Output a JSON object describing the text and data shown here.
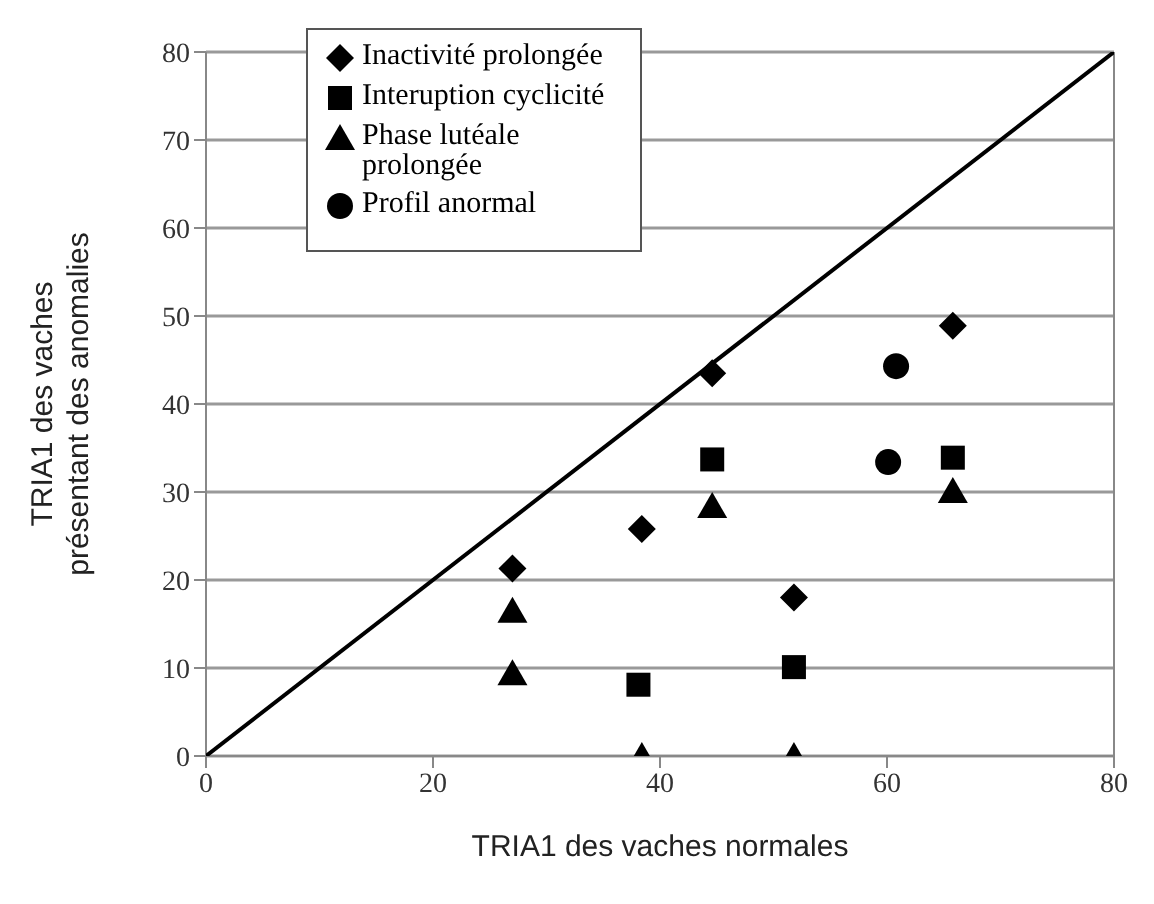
{
  "chart_data": {
    "type": "scatter",
    "xlabel": "TRIA1 des vaches normales",
    "ylabel": "TRIA1 des vaches présentant des anomalies",
    "xlim": [
      0,
      80
    ],
    "ylim": [
      0,
      80
    ],
    "xticks": [
      0,
      20,
      40,
      60,
      80
    ],
    "yticks": [
      0,
      10,
      20,
      30,
      40,
      50,
      60,
      70,
      80
    ],
    "grid": "y",
    "legend": "top left",
    "series": [
      {
        "name": "Inactivité prolongée",
        "color": "#000000",
        "marker": "diamond",
        "x": [
          27,
          38.4,
          44.6,
          51.8,
          65.8
        ],
        "values": [
          21.3,
          25.8,
          43.5,
          18,
          48.9
        ]
      },
      {
        "name": "Interuption cyclicité",
        "color": "#000000",
        "marker": "square",
        "x": [
          38.1,
          44.6,
          51.8,
          65.8
        ],
        "values": [
          8.1,
          33.7,
          10.1,
          33.9
        ]
      },
      {
        "name": "Phase lutéale prolongée",
        "color": "#000000",
        "marker": "triangle",
        "x": [
          27,
          27,
          38.4,
          44.6,
          51.8,
          65.8
        ],
        "values": [
          16.5,
          9.4,
          0,
          28.4,
          0,
          30.1
        ]
      },
      {
        "name": "Profil anormal",
        "color": "#000000",
        "marker": "circle",
        "x": [
          60.8,
          60.1
        ],
        "values": [
          44.3,
          33.4
        ]
      },
      {
        "type": "line",
        "color": "#000000",
        "marker": "none",
        "line_style": "solid",
        "x": [
          0,
          80
        ],
        "values": [
          0,
          80
        ]
      }
    ]
  }
}
